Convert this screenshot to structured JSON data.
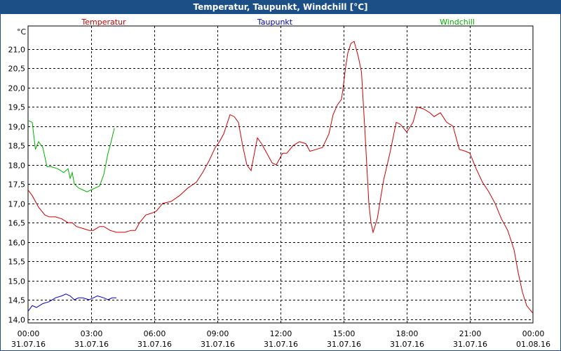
{
  "window": {
    "title": "Temperatur, Taupunkt, Windchill [°C]"
  },
  "colors": {
    "titlebar": "#1c4f86",
    "temperatur": "#d00000",
    "taupunkt": "#0000c0",
    "windchill": "#00b000",
    "grid": "#000000"
  },
  "chart_data": {
    "type": "line",
    "ylabel": "°C",
    "ylim": [
      13.9,
      21.6
    ],
    "y_ticks": [
      "14,0",
      "14,5",
      "15,0",
      "15,5",
      "16,0",
      "16,5",
      "17,0",
      "17,5",
      "18,0",
      "18,5",
      "19,0",
      "19,5",
      "20,0",
      "20,5",
      "21,0"
    ],
    "y_tick_values": [
      14.0,
      14.5,
      15.0,
      15.5,
      16.0,
      16.5,
      17.0,
      17.5,
      18.0,
      18.5,
      19.0,
      19.5,
      20.0,
      20.5,
      21.0
    ],
    "xlim_hours": [
      0,
      24
    ],
    "x_ticks": [
      {
        "time": "00:00",
        "date": "31.07.16"
      },
      {
        "time": "03:00",
        "date": "31.07.16"
      },
      {
        "time": "06:00",
        "date": "31.07.16"
      },
      {
        "time": "09:00",
        "date": "31.07.16"
      },
      {
        "time": "12:00",
        "date": "31.07.16"
      },
      {
        "time": "15:00",
        "date": "31.07.16"
      },
      {
        "time": "18:00",
        "date": "31.07.16"
      },
      {
        "time": "21:00",
        "date": "31.07.16"
      },
      {
        "time": "00:00",
        "date": "01.08.16"
      }
    ],
    "grid": true,
    "series": [
      {
        "name": "Temperatur",
        "color": "#d00000",
        "points": [
          [
            0,
            17.35
          ],
          [
            0.2,
            17.2
          ],
          [
            0.5,
            16.9
          ],
          [
            0.8,
            16.7
          ],
          [
            1.0,
            16.65
          ],
          [
            1.3,
            16.65
          ],
          [
            1.6,
            16.6
          ],
          [
            1.9,
            16.5
          ],
          [
            2.1,
            16.5
          ],
          [
            2.3,
            16.4
          ],
          [
            2.6,
            16.35
          ],
          [
            2.9,
            16.3
          ],
          [
            3.1,
            16.3
          ],
          [
            3.4,
            16.4
          ],
          [
            3.6,
            16.4
          ],
          [
            3.9,
            16.3
          ],
          [
            4.2,
            16.25
          ],
          [
            4.6,
            16.25
          ],
          [
            4.9,
            16.3
          ],
          [
            5.1,
            16.3
          ],
          [
            5.3,
            16.5
          ],
          [
            5.6,
            16.7
          ],
          [
            5.9,
            16.75
          ],
          [
            6.1,
            16.8
          ],
          [
            6.4,
            17.0
          ],
          [
            6.8,
            17.05
          ],
          [
            7.2,
            17.2
          ],
          [
            7.6,
            17.4
          ],
          [
            8.0,
            17.55
          ],
          [
            8.3,
            17.8
          ],
          [
            8.6,
            18.1
          ],
          [
            8.9,
            18.45
          ],
          [
            9.1,
            18.6
          ],
          [
            9.3,
            18.8
          ],
          [
            9.6,
            19.3
          ],
          [
            9.8,
            19.25
          ],
          [
            10.0,
            19.1
          ],
          [
            10.2,
            18.5
          ],
          [
            10.4,
            18.0
          ],
          [
            10.6,
            17.85
          ],
          [
            10.9,
            18.7
          ],
          [
            11.1,
            18.55
          ],
          [
            11.3,
            18.35
          ],
          [
            11.6,
            18.05
          ],
          [
            11.8,
            18.0
          ],
          [
            12.1,
            18.3
          ],
          [
            12.3,
            18.3
          ],
          [
            12.6,
            18.5
          ],
          [
            12.9,
            18.6
          ],
          [
            13.2,
            18.55
          ],
          [
            13.4,
            18.35
          ],
          [
            13.7,
            18.4
          ],
          [
            14.0,
            18.45
          ],
          [
            14.3,
            18.8
          ],
          [
            14.5,
            19.3
          ],
          [
            14.7,
            19.55
          ],
          [
            14.9,
            19.7
          ],
          [
            15.0,
            20.1
          ],
          [
            15.1,
            20.55
          ],
          [
            15.2,
            20.9
          ],
          [
            15.35,
            21.15
          ],
          [
            15.5,
            21.2
          ],
          [
            15.7,
            20.8
          ],
          [
            15.85,
            20.4
          ],
          [
            16.0,
            19.0
          ],
          [
            16.2,
            17.0
          ],
          [
            16.3,
            16.5
          ],
          [
            16.4,
            16.25
          ],
          [
            16.6,
            16.6
          ],
          [
            16.9,
            17.6
          ],
          [
            17.2,
            18.3
          ],
          [
            17.5,
            19.1
          ],
          [
            17.7,
            19.05
          ],
          [
            18.0,
            18.85
          ],
          [
            18.3,
            19.1
          ],
          [
            18.5,
            19.5
          ],
          [
            18.8,
            19.45
          ],
          [
            19.1,
            19.35
          ],
          [
            19.3,
            19.25
          ],
          [
            19.6,
            19.35
          ],
          [
            19.9,
            19.1
          ],
          [
            20.2,
            19.0
          ],
          [
            20.5,
            18.4
          ],
          [
            20.8,
            18.35
          ],
          [
            21.0,
            18.3
          ],
          [
            21.3,
            17.9
          ],
          [
            21.6,
            17.55
          ],
          [
            21.9,
            17.3
          ],
          [
            22.2,
            17.0
          ],
          [
            22.5,
            16.6
          ],
          [
            22.8,
            16.3
          ],
          [
            23.1,
            15.8
          ],
          [
            23.3,
            15.2
          ],
          [
            23.5,
            14.7
          ],
          [
            23.7,
            14.35
          ],
          [
            24.0,
            14.15
          ]
        ]
      },
      {
        "name": "Taupunkt",
        "color": "#0000c0",
        "points": [
          [
            0,
            14.2
          ],
          [
            0.2,
            14.35
          ],
          [
            0.4,
            14.3
          ],
          [
            0.7,
            14.4
          ],
          [
            1.0,
            14.45
          ],
          [
            1.3,
            14.55
          ],
          [
            1.6,
            14.6
          ],
          [
            1.8,
            14.65
          ],
          [
            2.0,
            14.6
          ],
          [
            2.2,
            14.5
          ],
          [
            2.4,
            14.55
          ],
          [
            2.6,
            14.55
          ],
          [
            2.9,
            14.5
          ],
          [
            3.1,
            14.55
          ],
          [
            3.3,
            14.6
          ],
          [
            3.6,
            14.55
          ],
          [
            3.8,
            14.5
          ],
          [
            4.0,
            14.55
          ],
          [
            4.2,
            14.55
          ]
        ]
      },
      {
        "name": "Windchill",
        "color": "#00b000",
        "points": [
          [
            0,
            19.15
          ],
          [
            0.2,
            19.1
          ],
          [
            0.35,
            18.4
          ],
          [
            0.5,
            18.6
          ],
          [
            0.7,
            18.45
          ],
          [
            0.9,
            17.95
          ],
          [
            1.1,
            17.95
          ],
          [
            1.4,
            17.9
          ],
          [
            1.7,
            17.8
          ],
          [
            1.9,
            17.9
          ],
          [
            2.0,
            17.65
          ],
          [
            2.1,
            17.8
          ],
          [
            2.2,
            17.5
          ],
          [
            2.4,
            17.4
          ],
          [
            2.6,
            17.35
          ],
          [
            2.8,
            17.3
          ],
          [
            3.0,
            17.35
          ],
          [
            3.2,
            17.4
          ],
          [
            3.4,
            17.45
          ],
          [
            3.6,
            17.75
          ],
          [
            3.8,
            18.3
          ],
          [
            3.95,
            18.6
          ],
          [
            4.1,
            18.95
          ]
        ]
      }
    ]
  }
}
